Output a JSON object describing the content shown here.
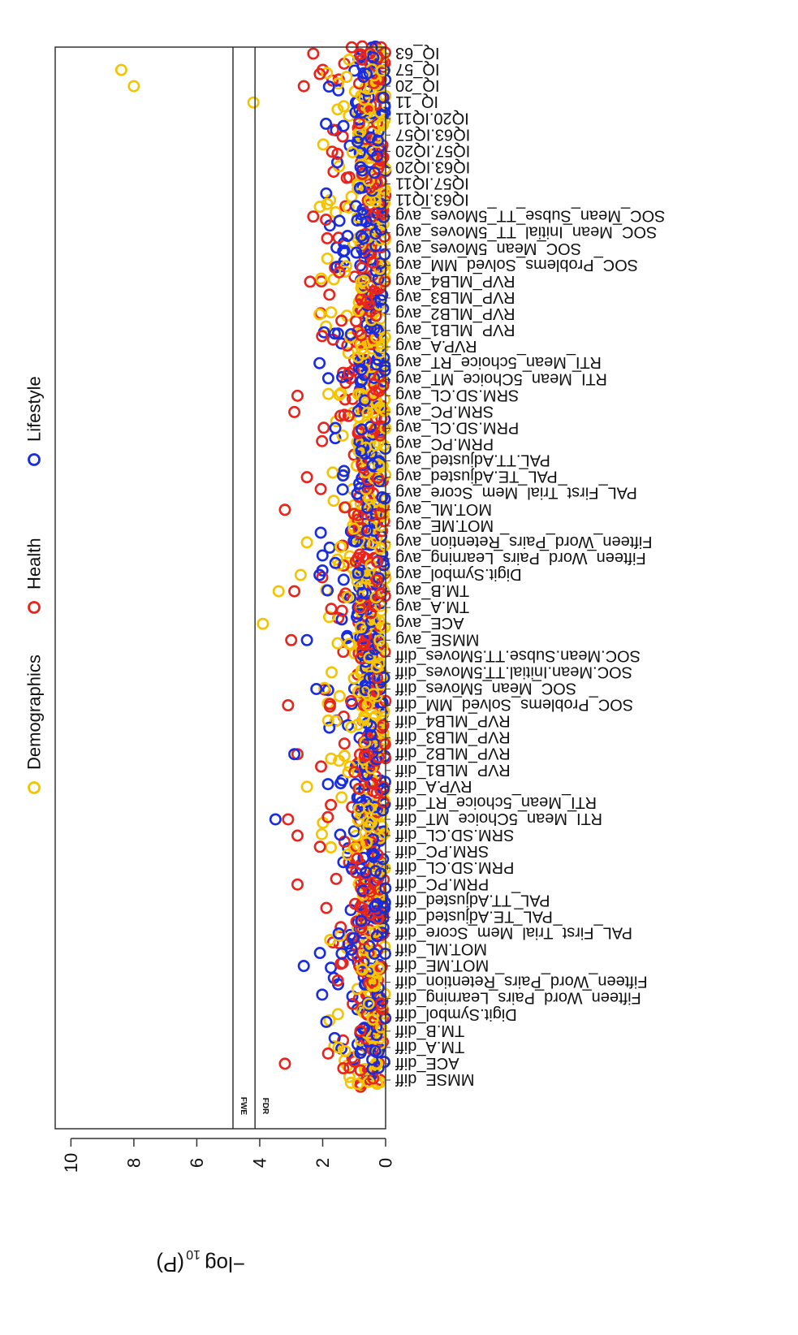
{
  "chart_data": {
    "type": "scatter",
    "orientation": "rotated-180",
    "title": "",
    "ylabel_main": "−log",
    "ylabel_sub": "10",
    "ylabel_tail": "(P)",
    "ylim": [
      0,
      10.5
    ],
    "yticks": [
      0,
      2,
      4,
      6,
      8,
      10
    ],
    "thresholds": [
      {
        "name": "FWE",
        "value": 4.85
      },
      {
        "name": "FDR",
        "value": 4.15
      }
    ],
    "legend": {
      "placement": "right",
      "entries": [
        {
          "name": "Demographics",
          "color": "#f5c400"
        },
        {
          "name": "Health",
          "color": "#e8251d"
        },
        {
          "name": "Lifestyle",
          "color": "#1a2ce0"
        }
      ]
    },
    "categories": [
      "MMSE_diff",
      "ACE_diff",
      "TM.A_diff",
      "TM.B_diff",
      "Digit.Symbol_diff",
      "Fifteen_Word_Pairs_Learning_diff",
      "Fifteen_Word_Pairs_Retention_diff",
      "MOT.ME_diff",
      "MOT.ML_diff",
      "PAL_First_Trial_Mem_Score_diff",
      "PAL_TE.Adjusted_diff",
      "PAL_TT.Adjusted_diff",
      "PRM.PC_diff",
      "PRM.SD.CL_diff",
      "SRM.PC_diff",
      "SRM.SD.CL_diff",
      "RTI_Mean_5Choice_MT_diff",
      "RTI_Mean_5choice_RT_diff",
      "RVP.A_diff",
      "RVP_MLB1_diff",
      "RVP_MLB2_diff",
      "RVP_MLB3_diff",
      "RVP_MLB4_diff",
      "SOC_Problems_Solved_MM_diff",
      "SOC_Mean_5Moves_diff",
      "SOC.Mean.Initial.TT.5Moves_diff",
      "SOC.Mean.Subse.TT.5Moves_diff",
      "MMSE_avg",
      "ACE_avg",
      "TM.A_avg",
      "TM.B_avg",
      "Digit.Symbol_avg",
      "Fifteen_Word_Pairs_Learning_avg",
      "Fifteen_Word_Pairs_Retention_avg",
      "MOT.ME_avg",
      "MOT.ML_avg",
      "PAL_First_Trial_Mem_Score_avg",
      "PAL_TE.Adjusted_avg",
      "PAL.TT.Adjusted_avg",
      "PRM.PC_avg",
      "PRM.SD.CL_avg",
      "SRM.PC_avg",
      "SRM.SD.CL_avg",
      "RTI_Mean_5Choice_MT_avg",
      "RTI_Mean_5choice_RT_avg",
      "RVP.A_avg",
      "RVP_MLB1_avg",
      "RVP_MLB2_avg",
      "RVP_MLB3_avg",
      "RVP_MLB4_avg",
      "SOC_Problems_Solved_MM_avg",
      "SOC_Mean_5Moves_avg",
      "SOC_Mean_Initial_TT_5Moves_avg",
      "SOC_Mean_Subse_TT_5Moves_avg",
      "IQ63.IQ11",
      "IQ57.IQ11",
      "IQ63.IQ20",
      "IQ57.IQ20",
      "IQ63.IQ57",
      "IQ20.IQ11",
      "IQ_11",
      "IQ_20",
      "IQ_57",
      "IQ_63"
    ],
    "highlighted_points": [
      {
        "category": "IQ_57",
        "series": "Demographics",
        "value": 8.4
      },
      {
        "category": "IQ_20",
        "series": "Demographics",
        "value": 8.0
      },
      {
        "category": "IQ_11",
        "series": "Demographics",
        "value": 4.2
      },
      {
        "category": "ACE_avg",
        "series": "Demographics",
        "value": 3.9
      },
      {
        "category": "TM.B_avg",
        "series": "Demographics",
        "value": 3.4
      },
      {
        "category": "Digit.Symbol_avg",
        "series": "Demographics",
        "value": 2.7
      },
      {
        "category": "Fifteen_Word_Pairs_Retention_avg",
        "series": "Demographics",
        "value": 2.5
      },
      {
        "category": "RVP.A_diff",
        "series": "Demographics",
        "value": 2.5
      },
      {
        "category": "RVP_MLB2_avg",
        "series": "Demographics",
        "value": 2.1
      },
      {
        "category": "TM.A_diff",
        "series": "Demographics",
        "value": 1.5
      },
      {
        "category": "IQ_63",
        "series": "Health",
        "value": 2.3
      },
      {
        "category": "IQ_20",
        "series": "Health",
        "value": 2.6
      },
      {
        "category": "SOC_Mean_Subse_TT_5Moves_avg",
        "series": "Health",
        "value": 2.3
      },
      {
        "category": "RVP_MLB4_avg",
        "series": "Health",
        "value": 2.4
      },
      {
        "category": "SRM.SD.CL_avg",
        "series": "Health",
        "value": 2.8
      },
      {
        "category": "SRM.PC_avg",
        "series": "Health",
        "value": 2.9
      },
      {
        "category": "PAL_TE.Adjusted_avg",
        "series": "Health",
        "value": 2.5
      },
      {
        "category": "MOT.ML_avg",
        "series": "Health",
        "value": 3.2
      },
      {
        "category": "TM.B_avg",
        "series": "Health",
        "value": 2.9
      },
      {
        "category": "MMSE_avg",
        "series": "Health",
        "value": 3.0
      },
      {
        "category": "SOC_Problems_Solved_MM_diff",
        "series": "Health",
        "value": 3.1
      },
      {
        "category": "RVP_MLB2_diff",
        "series": "Health",
        "value": 2.8
      },
      {
        "category": "RTI_Mean_5Choice_MT_diff",
        "series": "Health",
        "value": 3.1
      },
      {
        "category": "SRM.SD.CL_diff",
        "series": "Health",
        "value": 2.8
      },
      {
        "category": "PRM.PC_diff",
        "series": "Health",
        "value": 2.8
      },
      {
        "category": "ACE_diff",
        "series": "Health",
        "value": 3.2
      },
      {
        "category": "RTI_Mean_5Choice_MT_diff",
        "series": "Lifestyle",
        "value": 3.5
      },
      {
        "category": "RVP_MLB2_diff",
        "series": "Lifestyle",
        "value": 2.9
      },
      {
        "category": "MOT.ME_diff",
        "series": "Lifestyle",
        "value": 2.6
      },
      {
        "category": "MMSE_avg",
        "series": "Lifestyle",
        "value": 2.5
      },
      {
        "category": "SOC_Mean_5Moves_diff",
        "series": "Lifestyle",
        "value": 2.2
      },
      {
        "category": "RTI_Mean_5choice_RT_avg",
        "series": "Lifestyle",
        "value": 2.1
      },
      {
        "category": "Digit.Symbol_avg",
        "series": "Lifestyle",
        "value": 2.1
      }
    ]
  }
}
